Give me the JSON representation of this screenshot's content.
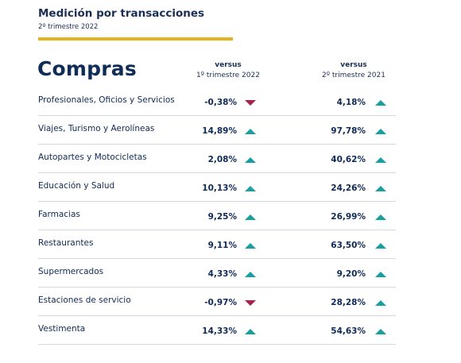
{
  "header": {
    "title": "Medición por transacciones",
    "subtitle": "2º trimestre 2022"
  },
  "section": {
    "title": "Compras"
  },
  "columns": [
    {
      "head": "versus",
      "sub": "1º trimestre 2022"
    },
    {
      "head": "versus",
      "sub": "2º trimestre 2021"
    }
  ],
  "colors": {
    "up": "#1a9fa0",
    "down": "#a6244b",
    "accent": "#e3b320",
    "text": "#0f2a55"
  },
  "rows": [
    {
      "label": "Profesionales, Oficios y Servicios",
      "v1": "-0,38%",
      "d1": "down",
      "v2": "4,18%",
      "d2": "up"
    },
    {
      "label": "Viajes, Turismo y Aerolíneas",
      "v1": "14,89%",
      "d1": "up",
      "v2": "97,78%",
      "d2": "up"
    },
    {
      "label": "Autopartes y Motocicletas",
      "v1": "2,08%",
      "d1": "up",
      "v2": "40,62%",
      "d2": "up"
    },
    {
      "label": "Educación y Salud",
      "v1": "10,13%",
      "d1": "up",
      "v2": "24,26%",
      "d2": "up"
    },
    {
      "label": "Farmacias",
      "v1": "9,25%",
      "d1": "up",
      "v2": "26,99%",
      "d2": "up"
    },
    {
      "label": "Restaurantes",
      "v1": "9,11%",
      "d1": "up",
      "v2": "63,50%",
      "d2": "up"
    },
    {
      "label": "Supermercados",
      "v1": "4,33%",
      "d1": "up",
      "v2": "9,20%",
      "d2": "up"
    },
    {
      "label": "Estaciones de servicio",
      "v1": "-0,97%",
      "d1": "down",
      "v2": "28,28%",
      "d2": "up"
    },
    {
      "label": "Vestimenta",
      "v1": "14,33%",
      "d1": "up",
      "v2": "54,63%",
      "d2": "up"
    }
  ]
}
